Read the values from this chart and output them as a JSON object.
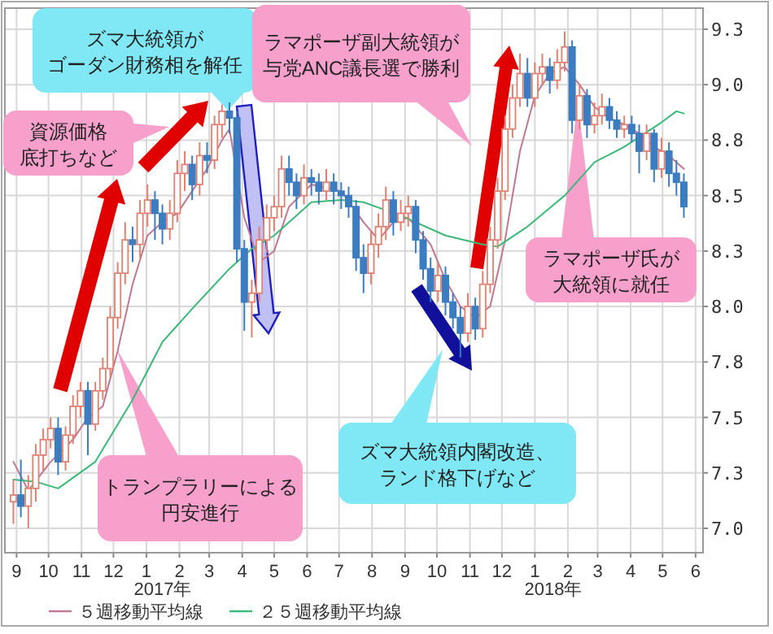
{
  "chart_data": {
    "type": "candlestick",
    "x": [
      "2016-08-29",
      "2016-09-05",
      "2016-09-12",
      "2016-09-19",
      "2016-09-26",
      "2016-10-03",
      "2016-10-10",
      "2016-10-17",
      "2016-10-24",
      "2016-10-31",
      "2016-11-07",
      "2016-11-14",
      "2016-11-21",
      "2016-11-28",
      "2016-12-05",
      "2016-12-12",
      "2016-12-19",
      "2016-12-26",
      "2017-01-02",
      "2017-01-09",
      "2017-01-16",
      "2017-01-23",
      "2017-01-30",
      "2017-02-06",
      "2017-02-13",
      "2017-02-20",
      "2017-02-27",
      "2017-03-06",
      "2017-03-13",
      "2017-03-20",
      "2017-03-27",
      "2017-04-03",
      "2017-04-10",
      "2017-04-17",
      "2017-04-24",
      "2017-05-01",
      "2017-05-08",
      "2017-05-15",
      "2017-05-22",
      "2017-05-29",
      "2017-06-05",
      "2017-06-12",
      "2017-06-19",
      "2017-06-26",
      "2017-07-03",
      "2017-07-10",
      "2017-07-17",
      "2017-07-24",
      "2017-07-31",
      "2017-08-07",
      "2017-08-14",
      "2017-08-21",
      "2017-08-28",
      "2017-09-04",
      "2017-09-11",
      "2017-09-18",
      "2017-09-25",
      "2017-10-02",
      "2017-10-09",
      "2017-10-16",
      "2017-10-23",
      "2017-10-30",
      "2017-11-06",
      "2017-11-13",
      "2017-11-20",
      "2017-11-27",
      "2017-12-04",
      "2017-12-11",
      "2017-12-18",
      "2017-12-25",
      "2018-01-01",
      "2018-01-08",
      "2018-01-15",
      "2018-01-22",
      "2018-01-29",
      "2018-02-05",
      "2018-02-12",
      "2018-02-19",
      "2018-02-26",
      "2018-03-05",
      "2018-03-12",
      "2018-03-19",
      "2018-03-26",
      "2018-04-02",
      "2018-04-09",
      "2018-04-16",
      "2018-04-23",
      "2018-04-30",
      "2018-05-07",
      "2018-05-14",
      "2018-05-21"
    ],
    "ohlc": [
      [
        7.12,
        7.22,
        7.02,
        7.15
      ],
      [
        7.15,
        7.31,
        7.05,
        7.1
      ],
      [
        7.1,
        7.24,
        7.0,
        7.18
      ],
      [
        7.18,
        7.38,
        7.12,
        7.33
      ],
      [
        7.33,
        7.45,
        7.26,
        7.4
      ],
      [
        7.4,
        7.5,
        7.36,
        7.45
      ],
      [
        7.45,
        7.5,
        7.24,
        7.3
      ],
      [
        7.3,
        7.46,
        7.26,
        7.42
      ],
      [
        7.42,
        7.6,
        7.38,
        7.55
      ],
      [
        7.55,
        7.66,
        7.5,
        7.62
      ],
      [
        7.62,
        7.66,
        7.33,
        7.47
      ],
      [
        7.47,
        7.66,
        7.44,
        7.62
      ],
      [
        7.62,
        7.77,
        7.58,
        7.72
      ],
      [
        7.72,
        8.0,
        7.68,
        7.95
      ],
      [
        7.95,
        8.2,
        7.9,
        8.15
      ],
      [
        8.15,
        8.38,
        8.1,
        8.3
      ],
      [
        8.3,
        8.36,
        8.2,
        8.28
      ],
      [
        8.28,
        8.48,
        8.22,
        8.42
      ],
      [
        8.42,
        8.55,
        8.36,
        8.48
      ],
      [
        8.48,
        8.52,
        8.3,
        8.42
      ],
      [
        8.42,
        8.46,
        8.28,
        8.35
      ],
      [
        8.35,
        8.48,
        8.3,
        8.42
      ],
      [
        8.42,
        8.66,
        8.38,
        8.6
      ],
      [
        8.6,
        8.7,
        8.52,
        8.64
      ],
      [
        8.64,
        8.68,
        8.48,
        8.55
      ],
      [
        8.55,
        8.74,
        8.5,
        8.68
      ],
      [
        8.68,
        8.74,
        8.6,
        8.66
      ],
      [
        8.66,
        8.86,
        8.62,
        8.82
      ],
      [
        8.82,
        8.91,
        8.76,
        8.88
      ],
      [
        8.88,
        8.92,
        8.78,
        8.85
      ],
      [
        8.85,
        8.88,
        8.2,
        8.26
      ],
      [
        8.26,
        8.3,
        7.89,
        8.02
      ],
      [
        8.02,
        8.12,
        7.86,
        8.06
      ],
      [
        8.06,
        8.36,
        8.02,
        8.3
      ],
      [
        8.3,
        8.46,
        8.24,
        8.4
      ],
      [
        8.4,
        8.5,
        8.34,
        8.45
      ],
      [
        8.45,
        8.68,
        8.4,
        8.62
      ],
      [
        8.62,
        8.68,
        8.5,
        8.56
      ],
      [
        8.56,
        8.6,
        8.44,
        8.5
      ],
      [
        8.5,
        8.64,
        8.46,
        8.58
      ],
      [
        8.58,
        8.62,
        8.5,
        8.56
      ],
      [
        8.56,
        8.6,
        8.46,
        8.52
      ],
      [
        8.52,
        8.62,
        8.48,
        8.56
      ],
      [
        8.56,
        8.6,
        8.46,
        8.52
      ],
      [
        8.52,
        8.56,
        8.44,
        8.5
      ],
      [
        8.5,
        8.54,
        8.4,
        8.45
      ],
      [
        8.45,
        8.48,
        8.16,
        8.22
      ],
      [
        8.22,
        8.28,
        8.06,
        8.15
      ],
      [
        8.15,
        8.34,
        8.1,
        8.28
      ],
      [
        8.28,
        8.42,
        8.22,
        8.36
      ],
      [
        8.36,
        8.54,
        8.3,
        8.48
      ],
      [
        8.48,
        8.52,
        8.32,
        8.38
      ],
      [
        8.38,
        8.48,
        8.34,
        8.42
      ],
      [
        8.42,
        8.5,
        8.36,
        8.45
      ],
      [
        8.45,
        8.48,
        8.24,
        8.3
      ],
      [
        8.3,
        8.34,
        8.12,
        8.17
      ],
      [
        8.17,
        8.22,
        8.02,
        8.07
      ],
      [
        8.07,
        8.2,
        8.02,
        8.14
      ],
      [
        8.14,
        8.18,
        7.96,
        8.02
      ],
      [
        8.02,
        8.06,
        7.9,
        7.95
      ],
      [
        7.95,
        8.0,
        7.77,
        7.88
      ],
      [
        7.88,
        8.06,
        7.84,
        8.0
      ],
      [
        8.0,
        8.04,
        7.85,
        7.9
      ],
      [
        7.9,
        8.16,
        7.86,
        8.1
      ],
      [
        8.1,
        8.36,
        8.06,
        8.3
      ],
      [
        8.3,
        8.58,
        8.26,
        8.52
      ],
      [
        8.52,
        8.86,
        8.48,
        8.8
      ],
      [
        8.8,
        9.0,
        8.76,
        8.94
      ],
      [
        8.94,
        9.14,
        8.9,
        9.05
      ],
      [
        9.05,
        9.12,
        8.9,
        8.94
      ],
      [
        8.94,
        9.1,
        8.9,
        9.05
      ],
      [
        9.05,
        9.14,
        9.0,
        9.08
      ],
      [
        9.08,
        9.12,
        8.96,
        9.02
      ],
      [
        9.02,
        9.16,
        8.98,
        9.1
      ],
      [
        9.1,
        9.24,
        9.06,
        9.17
      ],
      [
        9.17,
        9.2,
        8.78,
        8.84
      ],
      [
        8.84,
        9.0,
        8.8,
        8.95
      ],
      [
        8.95,
        8.98,
        8.76,
        8.82
      ],
      [
        8.82,
        8.92,
        8.78,
        8.86
      ],
      [
        8.86,
        8.96,
        8.82,
        8.9
      ],
      [
        8.9,
        8.94,
        8.8,
        8.84
      ],
      [
        8.84,
        8.88,
        8.76,
        8.8
      ],
      [
        8.8,
        8.86,
        8.76,
        8.82
      ],
      [
        8.82,
        8.86,
        8.74,
        8.78
      ],
      [
        8.78,
        8.82,
        8.6,
        8.7
      ],
      [
        8.7,
        8.82,
        8.66,
        8.78
      ],
      [
        8.78,
        8.8,
        8.56,
        8.62
      ],
      [
        8.62,
        8.76,
        8.58,
        8.7
      ],
      [
        8.7,
        8.74,
        8.54,
        8.6
      ],
      [
        8.6,
        8.66,
        8.5,
        8.56
      ],
      [
        8.56,
        8.6,
        8.4,
        8.45
      ]
    ],
    "colors": [
      "#e08070",
      "#3c7cc0",
      "#e08070",
      "#e08070",
      "#e08070",
      "#e08070",
      "#3c7cc0",
      "#e08070",
      "#e08070",
      "#e08070",
      "#3c7cc0",
      "#e08070",
      "#e08070",
      "#e08070",
      "#e08070",
      "#e08070",
      "#3c7cc0",
      "#e08070",
      "#e08070",
      "#3c7cc0",
      "#3c7cc0",
      "#e08070",
      "#e08070",
      "#e08070",
      "#3c7cc0",
      "#e08070",
      "#3c7cc0",
      "#e08070",
      "#e08070",
      "#3c7cc0",
      "#3c7cc0",
      "#3c7cc0",
      "#e08070",
      "#e08070",
      "#e08070",
      "#e08070",
      "#e08070",
      "#3c7cc0",
      "#3c7cc0",
      "#e08070",
      "#3c7cc0",
      "#3c7cc0",
      "#e08070",
      "#3c7cc0",
      "#3c7cc0",
      "#3c7cc0",
      "#3c7cc0",
      "#3c7cc0",
      "#e08070",
      "#e08070",
      "#e08070",
      "#3c7cc0",
      "#e08070",
      "#e08070",
      "#3c7cc0",
      "#3c7cc0",
      "#3c7cc0",
      "#e08070",
      "#3c7cc0",
      "#3c7cc0",
      "#3c7cc0",
      "#e08070",
      "#3c7cc0",
      "#e08070",
      "#e08070",
      "#e08070",
      "#e08070",
      "#e08070",
      "#e08070",
      "#3c7cc0",
      "#e08070",
      "#e08070",
      "#3c7cc0",
      "#e08070",
      "#e08070",
      "#3c7cc0",
      "#e08070",
      "#3c7cc0",
      "#e08070",
      "#e08070",
      "#3c7cc0",
      "#3c7cc0",
      "#e08070",
      "#3c7cc0",
      "#3c7cc0",
      "#e08070",
      "#3c7cc0",
      "#e08070",
      "#3c7cc0",
      "#3c7cc0",
      "#3c7cc0"
    ],
    "series": [
      {
        "name": "５週移動平均線",
        "type": "line",
        "color": "#c07890",
        "x": [
          "2016-08-29",
          "2016-09-12",
          "2016-10-03",
          "2016-10-24",
          "2016-11-07",
          "2016-11-21",
          "2016-12-05",
          "2016-12-19",
          "2017-01-02",
          "2017-01-16",
          "2017-01-30",
          "2017-02-13",
          "2017-02-27",
          "2017-03-13",
          "2017-03-20",
          "2017-04-03",
          "2017-04-17",
          "2017-05-01",
          "2017-05-15",
          "2017-06-05",
          "2017-07-03",
          "2017-07-24",
          "2017-08-07",
          "2017-08-21",
          "2017-09-04",
          "2017-09-25",
          "2017-10-09",
          "2017-10-23",
          "2017-11-06",
          "2017-11-20",
          "2017-12-04",
          "2017-12-18",
          "2018-01-01",
          "2018-01-15",
          "2018-01-29",
          "2018-02-12",
          "2018-02-26",
          "2018-03-12",
          "2018-03-26",
          "2018-04-09",
          "2018-04-23",
          "2018-05-07",
          "2018-05-21"
        ],
        "values": [
          7.3,
          7.17,
          7.3,
          7.4,
          7.5,
          7.55,
          7.8,
          8.1,
          8.32,
          8.38,
          8.42,
          8.52,
          8.62,
          8.75,
          8.8,
          8.4,
          8.2,
          8.25,
          8.45,
          8.55,
          8.52,
          8.38,
          8.3,
          8.38,
          8.4,
          8.28,
          8.12,
          8.0,
          7.95,
          8.0,
          8.3,
          8.7,
          8.95,
          9.05,
          9.08,
          9.0,
          8.9,
          8.85,
          8.82,
          8.78,
          8.72,
          8.68,
          8.62
        ]
      },
      {
        "name": "２５週移動平均線",
        "type": "line",
        "color": "#3cb878",
        "x": [
          "2016-08-29",
          "2016-09-19",
          "2016-10-10",
          "2016-11-14",
          "2016-12-19",
          "2017-01-16",
          "2017-02-13",
          "2017-03-20",
          "2017-04-10",
          "2017-05-01",
          "2017-06-05",
          "2017-07-03",
          "2017-07-24",
          "2017-08-28",
          "2017-10-09",
          "2017-11-13",
          "2017-11-27",
          "2017-12-25",
          "2018-01-29",
          "2018-02-26",
          "2018-03-26",
          "2018-04-30",
          "2018-05-14",
          "2018-05-21"
        ],
        "values": [
          7.22,
          7.21,
          7.18,
          7.3,
          7.58,
          7.84,
          7.99,
          8.17,
          8.26,
          8.32,
          8.47,
          8.48,
          8.47,
          8.41,
          8.32,
          8.28,
          8.27,
          8.36,
          8.5,
          8.65,
          8.72,
          8.83,
          8.88,
          8.87
        ]
      }
    ],
    "ylim": [
      6.89,
      9.345
    ],
    "yticks": [
      {
        "value": 7,
        "label": "7.0"
      },
      {
        "value": 7.25,
        "label": "7.3"
      },
      7.5,
      {
        "value": 7.75,
        "label": "7.8"
      },
      {
        "value": 8,
        "label": "8.0"
      },
      {
        "value": 8.25,
        "label": "8.3"
      },
      8.5,
      {
        "value": 8.75,
        "label": "8.8"
      },
      {
        "value": 9,
        "label": "9.0"
      },
      {
        "value": 9.25,
        "label": "9.3"
      }
    ],
    "xlim": [
      "2016-08-21",
      "2018-06-08"
    ],
    "xticks": [
      {
        "value": "2016-09-01",
        "label": "9"
      },
      {
        "value": "2016-10-01",
        "label": "10"
      },
      {
        "value": "2016-11-01",
        "label": "11"
      },
      {
        "value": "2016-12-01",
        "label": "12"
      },
      {
        "value": "2017-01-01",
        "label": "1"
      },
      {
        "value": "2017-02-01",
        "label": "2"
      },
      {
        "value": "2017-03-01",
        "label": "3"
      },
      {
        "value": "2017-04-01",
        "label": "4"
      },
      {
        "value": "2017-05-01",
        "label": "5"
      },
      {
        "value": "2017-06-01",
        "label": "6"
      },
      {
        "value": "2017-07-01",
        "label": "7"
      },
      {
        "value": "2017-08-01",
        "label": "8"
      },
      {
        "value": "2017-09-01",
        "label": "9"
      },
      {
        "value": "2017-10-01",
        "label": "10"
      },
      {
        "value": "2017-11-01",
        "label": "11"
      },
      {
        "value": "2017-12-01",
        "label": "12"
      },
      {
        "value": "2018-01-01",
        "label": "1"
      },
      {
        "value": "2018-02-01",
        "label": "2"
      },
      {
        "value": "2018-03-01",
        "label": "3"
      },
      {
        "value": "2018-04-01",
        "label": "4"
      },
      {
        "value": "2018-05-01",
        "label": "5"
      },
      {
        "value": "2018-06-01",
        "label": "6"
      }
    ],
    "grid": true,
    "legend": "bottom",
    "annotations": [
      "ズマ大統領が",
      "ゴーダン財務相を解任",
      "資源価格",
      "底打ちなど",
      "ラマポーザ副大統領が",
      "与党ANC議長選で勝利",
      "トランプラリーによる",
      "円安進行",
      "ズマ大統領内閣改造、",
      "ランド格下げなど",
      "ラマポーザ氏が",
      "大統領に就任",
      "2017年",
      "2018年"
    ]
  }
}
